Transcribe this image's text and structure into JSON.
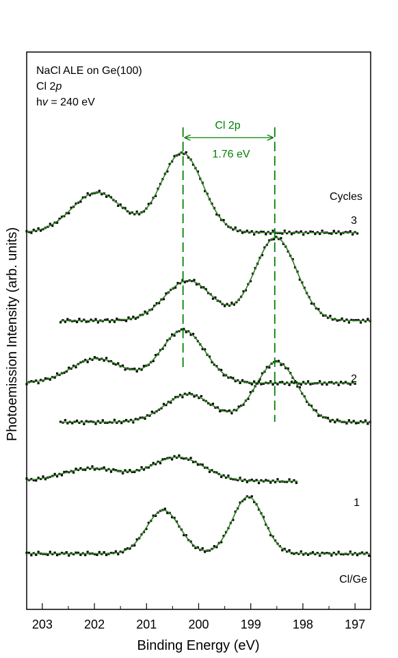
{
  "chart_data": {
    "type": "line",
    "xlabel": "Binding Energy (eV)",
    "ylabel": "Photoemission Intensity (arb. units)",
    "xlim": [
      203.3,
      196.7
    ],
    "x_reversed": true,
    "x_ticks": [
      "203",
      "202",
      "201",
      "200",
      "199",
      "198",
      "197"
    ],
    "x_tick_values": [
      203,
      202,
      201,
      200,
      199,
      198,
      197
    ],
    "ylim": [
      0,
      100
    ],
    "annotation_lines": [
      "NaCl ALE on Ge(100)",
      "Cl 2p",
      "hv = 240 eV"
    ],
    "shift_annotation": {
      "label": "Cl 2p",
      "value": "1.76 eV",
      "x1": 200.3,
      "x2": 198.54,
      "color": "#008000"
    },
    "cycles_label": "Cycles",
    "fit_color": "#2e7d1f",
    "data_color": "#000000",
    "series": [
      {
        "name": "Cl/Ge",
        "x_range": [
          203.3,
          196.7
        ],
        "baseline": 10.0,
        "peaks": [
          {
            "center": 200.68,
            "amplitude": 7.8,
            "width": 0.32
          },
          {
            "center": 199.05,
            "amplitude": 10.2,
            "width": 0.3
          }
        ]
      },
      {
        "name": "1",
        "x_range": [
          203.3,
          198.1
        ],
        "baseline": 23.0,
        "peaks": [
          {
            "center": 202.05,
            "amplitude": 2.3,
            "width": 0.55
          },
          {
            "center": 200.4,
            "amplitude": 4.3,
            "width": 0.5
          }
        ]
      },
      {
        "name": "",
        "x_range": [
          202.65,
          196.7
        ],
        "baseline": 33.6,
        "peaks": [
          {
            "center": 200.2,
            "amplitude": 5.0,
            "width": 0.45
          },
          {
            "center": 198.5,
            "amplitude": 10.8,
            "width": 0.4
          }
        ]
      },
      {
        "name": "2",
        "x_range": [
          203.3,
          197.0
        ],
        "baseline": 40.6,
        "peaks": [
          {
            "center": 201.95,
            "amplitude": 4.4,
            "width": 0.5
          },
          {
            "center": 200.3,
            "amplitude": 9.5,
            "width": 0.42
          }
        ]
      },
      {
        "name": "",
        "x_range": [
          202.65,
          196.7
        ],
        "baseline": 51.8,
        "peaks": [
          {
            "center": 200.2,
            "amplitude": 7.2,
            "width": 0.45
          },
          {
            "center": 198.52,
            "amplitude": 14.9,
            "width": 0.4
          }
        ]
      },
      {
        "name": "3",
        "x_range": [
          203.3,
          196.95
        ],
        "baseline": 67.6,
        "peaks": [
          {
            "center": 201.95,
            "amplitude": 7.2,
            "width": 0.48
          },
          {
            "center": 200.32,
            "amplitude": 14.3,
            "width": 0.4
          }
        ]
      }
    ]
  }
}
